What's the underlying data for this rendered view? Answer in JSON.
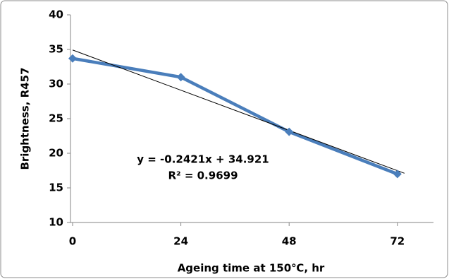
{
  "chart_data": {
    "type": "line",
    "x_label": "Ageing time at 150℃, hr",
    "y_label": "Brightness, R457",
    "x": [
      0,
      24,
      48,
      72
    ],
    "series": [
      {
        "name": "Brightness",
        "color": "#4a7ebb",
        "values": [
          33.7,
          31.0,
          23.1,
          17.0
        ]
      }
    ],
    "xlim": [
      0,
      80
    ],
    "xticks": [
      0,
      24,
      48,
      72
    ],
    "ylim": [
      10,
      40
    ],
    "yticks": [
      10,
      15,
      20,
      25,
      30,
      35,
      40
    ],
    "grid": false,
    "trendline": {
      "label": "y = -0.2421x + 34.921",
      "r2_label": "R² = 0.9699",
      "slope": -0.2421,
      "intercept": 34.921,
      "r2": 0.9699,
      "color": "#000000"
    }
  }
}
